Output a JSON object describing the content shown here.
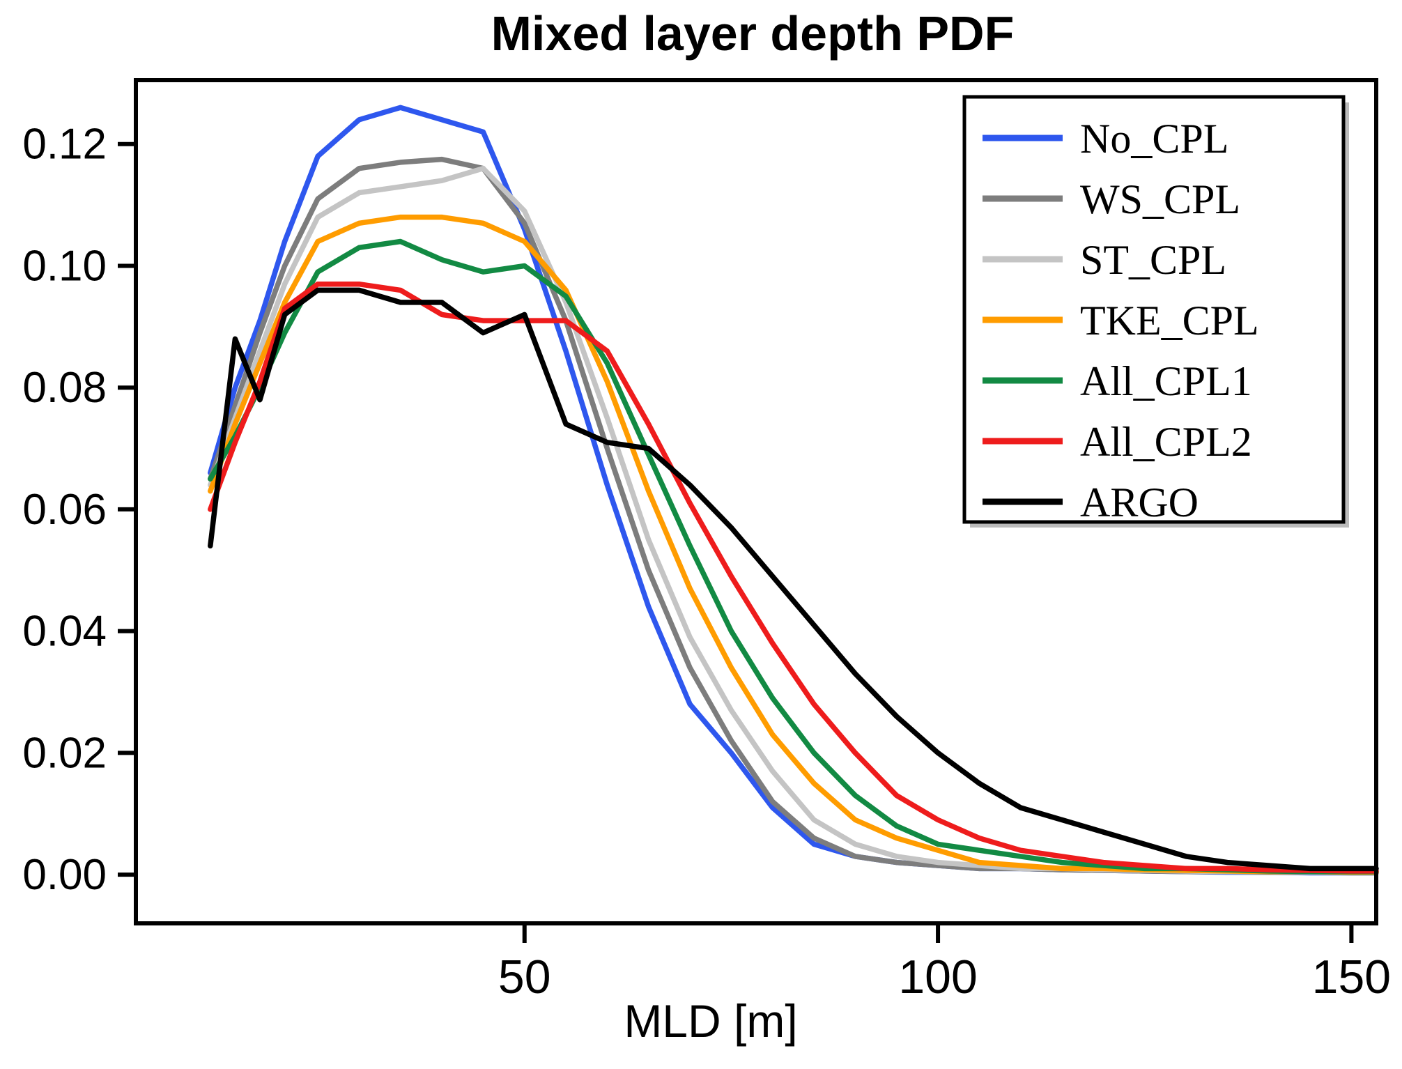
{
  "figure": {
    "background": "#ffffff",
    "axis_color": "#000000"
  },
  "chart_data": {
    "type": "line",
    "title": "Mixed layer depth PDF",
    "xlabel": "MLD [m]",
    "ylabel": "",
    "grid": false,
    "legend_position": "upper right",
    "xlim": [
      3,
      153
    ],
    "ylim": [
      -0.008,
      0.1305
    ],
    "xticks": [
      {
        "v": 50,
        "label": "50"
      },
      {
        "v": 100,
        "label": "100"
      },
      {
        "v": 150,
        "label": "150"
      }
    ],
    "yticks": [
      {
        "v": 0.0,
        "label": "0.00"
      },
      {
        "v": 0.02,
        "label": "0.02"
      },
      {
        "v": 0.04,
        "label": "0.04"
      },
      {
        "v": 0.06,
        "label": "0.06"
      },
      {
        "v": 0.08,
        "label": "0.08"
      },
      {
        "v": 0.1,
        "label": "0.10"
      },
      {
        "v": 0.12,
        "label": "0.12"
      }
    ],
    "x": [
      12,
      15,
      18,
      21,
      25,
      30,
      35,
      40,
      45,
      50,
      55,
      60,
      65,
      70,
      75,
      80,
      85,
      90,
      95,
      100,
      105,
      110,
      115,
      120,
      125,
      130,
      135,
      140,
      145,
      150,
      153
    ],
    "series": [
      {
        "name": "No_CPL",
        "color": "#2e57ee",
        "values": [
          0.066,
          0.08,
          0.091,
          0.104,
          0.118,
          0.124,
          0.126,
          0.124,
          0.122,
          0.106,
          0.086,
          0.064,
          0.044,
          0.028,
          0.02,
          0.011,
          0.005,
          0.003,
          0.002,
          0.0015,
          0.001,
          0.001,
          0.0008,
          0.0007,
          0.0006,
          0.0005,
          0.0004,
          0.0004,
          0.0003,
          0.0003,
          0.0003
        ]
      },
      {
        "name": "WS_CPL",
        "color": "#7d7d7d",
        "values": [
          0.065,
          0.077,
          0.089,
          0.1,
          0.111,
          0.116,
          0.117,
          0.1175,
          0.116,
          0.107,
          0.091,
          0.07,
          0.05,
          0.034,
          0.022,
          0.012,
          0.006,
          0.003,
          0.002,
          0.0015,
          0.001,
          0.001,
          0.0008,
          0.0007,
          0.0006,
          0.0005,
          0.0005,
          0.0004,
          0.0004,
          0.0003,
          0.0003
        ]
      },
      {
        "name": "ST_CPL",
        "color": "#c4c4c4",
        "values": [
          0.064,
          0.075,
          0.086,
          0.097,
          0.108,
          0.112,
          0.113,
          0.114,
          0.116,
          0.109,
          0.094,
          0.075,
          0.055,
          0.039,
          0.027,
          0.017,
          0.009,
          0.005,
          0.003,
          0.002,
          0.0015,
          0.001,
          0.001,
          0.0008,
          0.0007,
          0.0006,
          0.0005,
          0.0005,
          0.0004,
          0.0004,
          0.0004
        ]
      },
      {
        "name": "TKE_CPL",
        "color": "#ff9c00",
        "values": [
          0.063,
          0.074,
          0.084,
          0.094,
          0.104,
          0.107,
          0.108,
          0.108,
          0.107,
          0.104,
          0.096,
          0.081,
          0.063,
          0.047,
          0.034,
          0.023,
          0.015,
          0.009,
          0.006,
          0.004,
          0.002,
          0.0015,
          0.001,
          0.001,
          0.0008,
          0.0007,
          0.0006,
          0.0005,
          0.0005,
          0.0004,
          0.0004
        ]
      },
      {
        "name": "All_CPL1",
        "color": "#128a43",
        "values": [
          0.065,
          0.072,
          0.08,
          0.089,
          0.099,
          0.103,
          0.104,
          0.101,
          0.099,
          0.1,
          0.095,
          0.084,
          0.069,
          0.054,
          0.04,
          0.029,
          0.02,
          0.013,
          0.008,
          0.005,
          0.004,
          0.003,
          0.002,
          0.0015,
          0.001,
          0.001,
          0.0008,
          0.0006,
          0.0005,
          0.0005,
          0.0005
        ]
      },
      {
        "name": "All_CPL2",
        "color": "#ee1c1c",
        "values": [
          0.06,
          0.071,
          0.081,
          0.093,
          0.097,
          0.097,
          0.096,
          0.092,
          0.091,
          0.091,
          0.091,
          0.086,
          0.074,
          0.061,
          0.049,
          0.038,
          0.028,
          0.02,
          0.013,
          0.009,
          0.006,
          0.004,
          0.003,
          0.002,
          0.0015,
          0.001,
          0.001,
          0.0008,
          0.0007,
          0.0006,
          0.0006
        ]
      },
      {
        "name": "ARGO",
        "color": "#000000",
        "values": [
          0.054,
          0.088,
          0.078,
          0.092,
          0.096,
          0.096,
          0.094,
          0.094,
          0.089,
          0.092,
          0.074,
          0.071,
          0.07,
          0.064,
          0.057,
          0.049,
          0.041,
          0.033,
          0.026,
          0.02,
          0.015,
          0.011,
          0.009,
          0.007,
          0.005,
          0.003,
          0.002,
          0.0015,
          0.001,
          0.001,
          0.001
        ]
      }
    ]
  }
}
